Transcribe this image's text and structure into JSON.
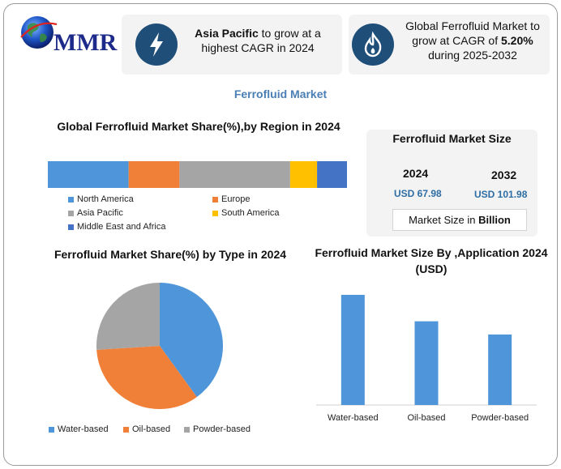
{
  "brand": {
    "logo_text": "MMR"
  },
  "highlights": [
    {
      "icon": "lightning-bolt-icon",
      "bold": "Asia Pacific",
      "text_before": "",
      "text_after": " to grow at a highest CAGR in 2024"
    },
    {
      "icon": "flame-icon",
      "text_before": "Global Ferrofluid Market to grow at CAGR of ",
      "bold": "5.20%",
      "text_after": " during 2025-2032"
    }
  ],
  "page_title": "Ferrofluid Market",
  "colors": {
    "blue": "#4e95d9",
    "orange": "#f07f37",
    "gray": "#a5a5a5",
    "yellow": "#ffc000",
    "dark_blue": "#4472c4",
    "badge": "#1f4e79"
  },
  "market_size": {
    "title": "Ferrofluid Market Size",
    "years": [
      {
        "year": "2024",
        "value": "USD 67.98"
      },
      {
        "year": "2032",
        "value": "USD 101.98"
      }
    ],
    "unit_prefix": "Market Size in ",
    "unit_bold": "Billion"
  },
  "chart_data": [
    {
      "type": "bar",
      "orientation": "horizontal-stacked",
      "title": "Global Ferrofluid Market  Share(%),by Region in 2024",
      "series": [
        {
          "name": "North America",
          "value": 27,
          "color": "#4e95d9"
        },
        {
          "name": "Europe",
          "value": 17,
          "color": "#f07f37"
        },
        {
          "name": "Asia Pacific",
          "value": 37,
          "color": "#a5a5a5"
        },
        {
          "name": "South America",
          "value": 9,
          "color": "#ffc000"
        },
        {
          "name": "Middle East and Africa",
          "value": 10,
          "color": "#4472c4"
        }
      ]
    },
    {
      "type": "pie",
      "title": "Ferrofluid Market Share(%) by  Type in 2024",
      "slices": [
        {
          "name": "Water-based",
          "value": 40,
          "color": "#4e95d9"
        },
        {
          "name": "Oil-based",
          "value": 34,
          "color": "#f07f37"
        },
        {
          "name": "Powder-based",
          "value": 26,
          "color": "#a5a5a5"
        }
      ]
    },
    {
      "type": "bar",
      "title": "Ferrofluid Market Size By ,Application 2024 (USD)",
      "categories": [
        "Water-based",
        "Oil-based",
        "Powder-based"
      ],
      "values": [
        100,
        76,
        64
      ],
      "ylim": [
        0,
        100
      ],
      "color": "#4e95d9"
    }
  ]
}
